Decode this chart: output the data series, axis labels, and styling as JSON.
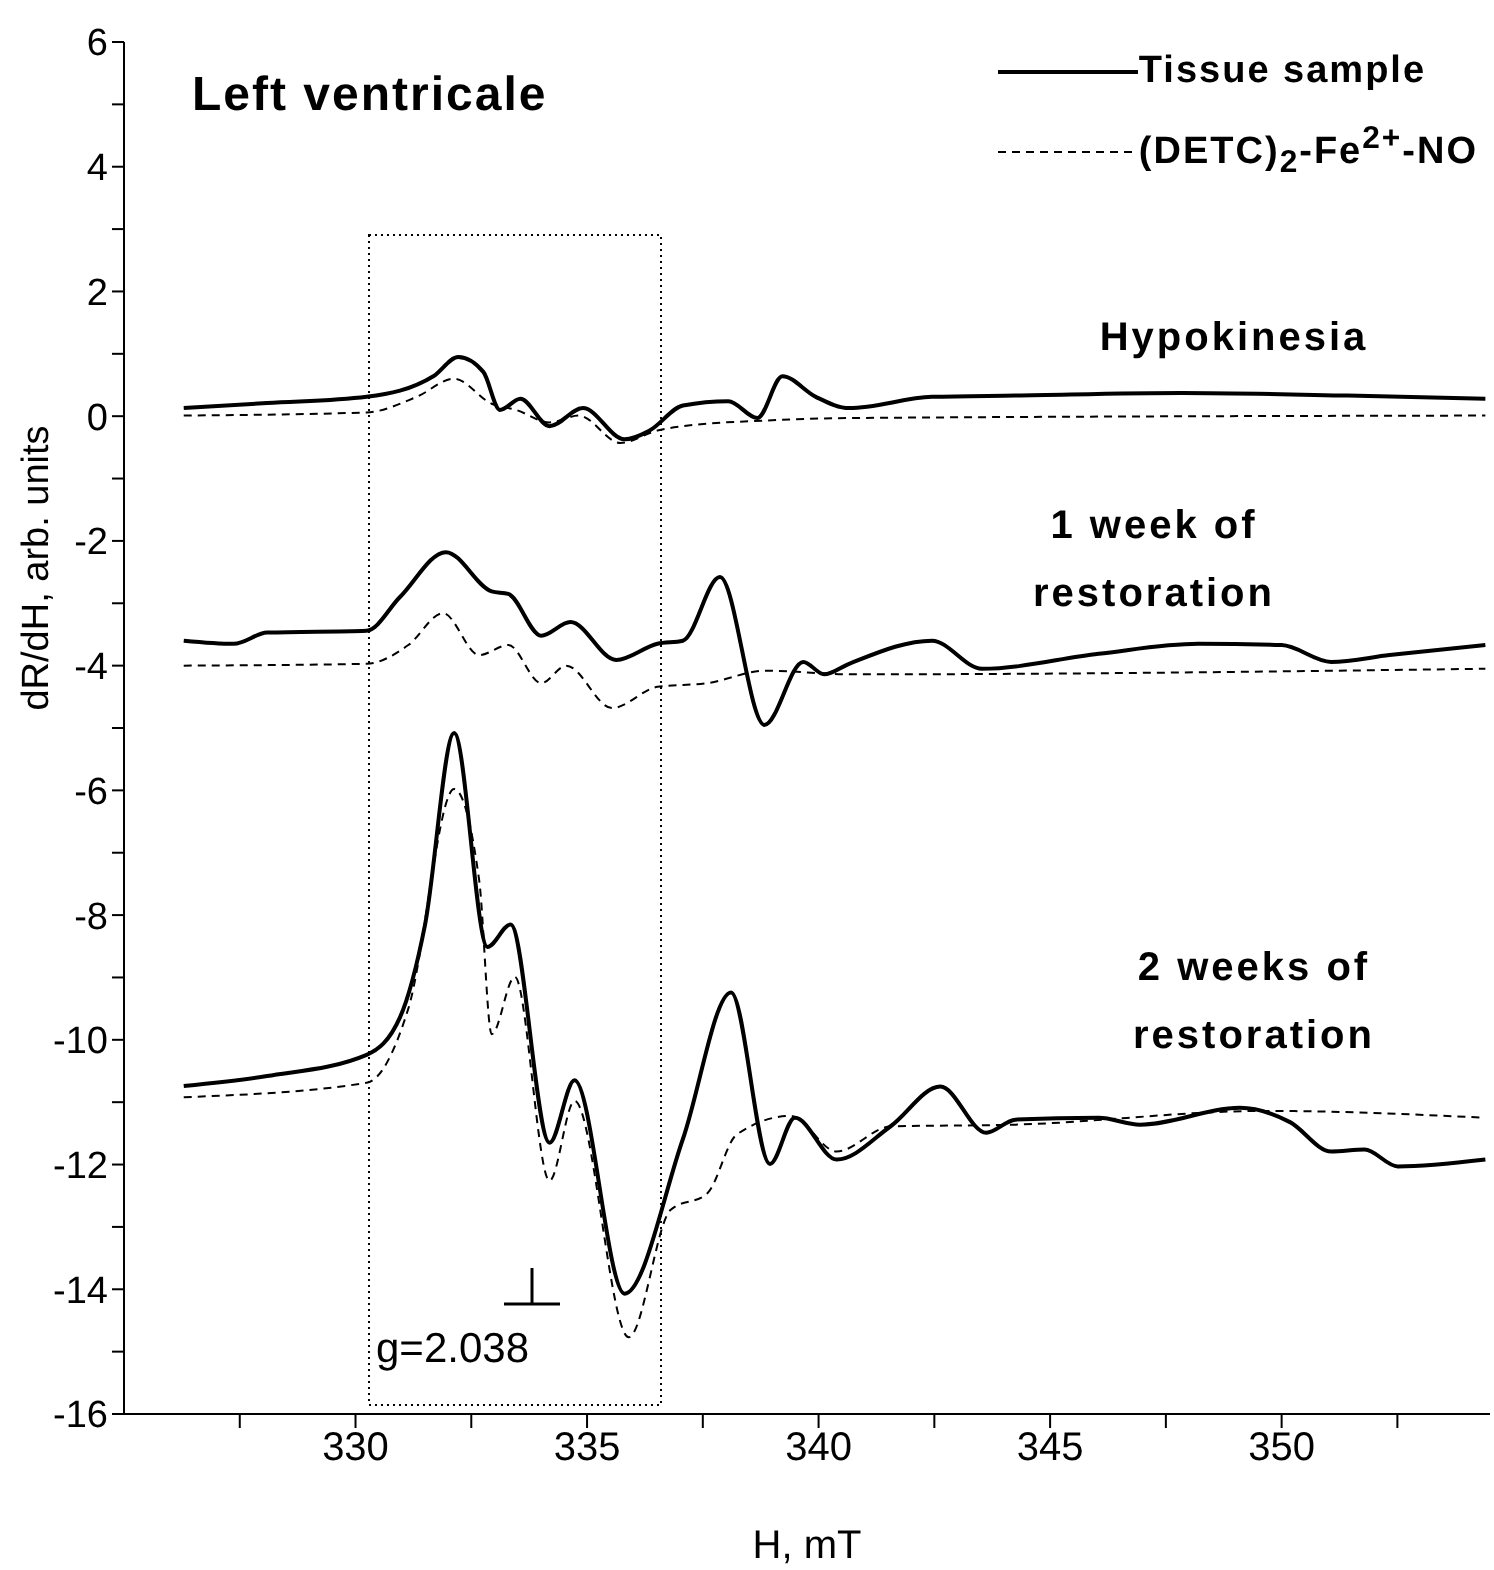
{
  "chart_data": {
    "type": "line",
    "title": "Left ventricale",
    "xlabel": "H, mT",
    "ylabel": "dR/dH, arb. units",
    "xlim": [
      325,
      354.5
    ],
    "xticks": [
      {
        "value": 327.5,
        "label": null
      },
      330,
      {
        "value": 332.5,
        "label": null
      },
      335,
      {
        "value": 337.5,
        "label": null
      },
      340,
      {
        "value": 342.5,
        "label": null
      },
      345,
      {
        "value": 347.5,
        "label": null
      },
      350,
      {
        "value": 352.5,
        "label": null
      }
    ],
    "ylim": [
      -16,
      6
    ],
    "yticks": [
      -16,
      {
        "value": -15,
        "label": null
      },
      -14,
      {
        "value": -13,
        "label": null
      },
      -12,
      {
        "value": -11,
        "label": null
      },
      -10,
      {
        "value": -9,
        "label": null
      },
      -8,
      {
        "value": -7,
        "label": null
      },
      -6,
      {
        "value": -5,
        "label": null
      },
      -4,
      {
        "value": -3,
        "label": null
      },
      -2,
      {
        "value": -1,
        "label": null
      },
      0,
      {
        "value": 1,
        "label": null
      },
      2,
      {
        "value": 3,
        "label": null
      },
      4,
      {
        "value": 5,
        "label": null
      },
      6
    ],
    "legend": "top right",
    "marker": "none",
    "series": [
      {
        "name": "Tissue sample",
        "color": "#000000",
        "line_style": "solid",
        "x": [
          326.29,
          328.09,
          330.24,
          331.68,
          332.22,
          332.76,
          333.12,
          333.56,
          334.19,
          334.91,
          335.81,
          336.35,
          337.07,
          338.05,
          338.68,
          339.22,
          339.94,
          340.66,
          342.45,
          344.25,
          347.84,
          351.43,
          354.4
        ],
        "values": [
          0.13,
          0.21,
          0.31,
          0.64,
          0.95,
          0.71,
          0.1,
          0.28,
          -0.16,
          0.13,
          -0.37,
          -0.23,
          0.17,
          0.24,
          -0.03,
          0.64,
          0.31,
          0.13,
          0.31,
          0.33,
          0.37,
          0.33,
          0.28
        ]
      },
      {
        "name": "(DETC)$_{2}$-Fe$^{2+}$-NO",
        "color": "#000000",
        "line_style": "dashed",
        "x": [
          326.29,
          330.24,
          331.32,
          332.13,
          332.94,
          333.47,
          334.19,
          334.82,
          335.72,
          336.52,
          337.07,
          338.86,
          340.66,
          354.4
        ],
        "values": [
          0.01,
          0.06,
          0.31,
          0.6,
          0.2,
          0.1,
          -0.1,
          0.01,
          -0.43,
          -0.23,
          -0.16,
          -0.07,
          -0.03,
          0.01
        ]
      },
      {
        "color": "#000000",
        "line_style": "solid",
        "x": [
          326.29,
          327.37,
          328.09,
          330.24,
          330.96,
          331.95,
          332.94,
          333.3,
          334.01,
          334.64,
          335.63,
          336.52,
          337.07,
          337.87,
          338.83,
          339.67,
          340.12,
          340.66,
          342.45,
          343.53,
          346.05,
          348.2,
          350.0,
          351.07,
          352.33,
          354.4
        ],
        "values": [
          -3.6,
          -3.65,
          -3.47,
          -3.44,
          -2.9,
          -2.18,
          -2.81,
          -2.85,
          -3.52,
          -3.3,
          -3.91,
          -3.65,
          -3.6,
          -2.58,
          -4.95,
          -3.94,
          -4.14,
          -3.97,
          -3.6,
          -4.05,
          -3.81,
          -3.65,
          -3.67,
          -3.94,
          -3.83,
          -3.67
        ]
      },
      {
        "color": "#000000",
        "line_style": "dashed",
        "x": [
          326.29,
          330.24,
          331.14,
          331.89,
          332.67,
          333.3,
          334.01,
          334.55,
          335.54,
          336.52,
          337.6,
          338.86,
          340.66,
          354.4
        ],
        "values": [
          -4.0,
          -3.97,
          -3.67,
          -3.16,
          -3.83,
          -3.67,
          -4.28,
          -4.0,
          -4.68,
          -4.34,
          -4.28,
          -4.08,
          -4.14,
          -4.05
        ]
      },
      {
        "color": "#000000",
        "line_style": "solid",
        "x": [
          326.29,
          328.09,
          330.24,
          330.96,
          331.5,
          332.13,
          332.85,
          333.35,
          334.19,
          334.73,
          335.81,
          337.07,
          338.11,
          338.95,
          339.49,
          340.39,
          341.55,
          342.63,
          343.62,
          344.25,
          346.05,
          346.94,
          349.1,
          350.18,
          351.07,
          351.79,
          352.51,
          354.4
        ],
        "values": [
          -10.74,
          -10.58,
          -10.24,
          -9.64,
          -8.16,
          -5.08,
          -8.51,
          -8.15,
          -11.65,
          -10.65,
          -14.07,
          -11.59,
          -9.24,
          -11.99,
          -11.25,
          -11.92,
          -11.39,
          -10.75,
          -11.49,
          -11.28,
          -11.25,
          -11.36,
          -11.09,
          -11.32,
          -11.79,
          -11.76,
          -12.03,
          -11.92
        ]
      },
      {
        "color": "#000000",
        "line_style": "dashed",
        "x": [
          326.29,
          330.24,
          331.14,
          332.13,
          332.67,
          332.94,
          333.44,
          334.19,
          334.73,
          335.9,
          336.8,
          337.6,
          338.23,
          339.4,
          340.39,
          341.55,
          344.25,
          349.64,
          354.4
        ],
        "values": [
          -10.92,
          -10.69,
          -9.5,
          -5.98,
          -7.44,
          -9.91,
          -8.99,
          -12.26,
          -10.98,
          -14.77,
          -12.73,
          -12.46,
          -11.52,
          -11.22,
          -11.79,
          -11.39,
          -11.36,
          -11.14,
          -11.25
        ]
      }
    ],
    "annotations": [
      "Hypokinesia",
      "1 week of\nrestoration",
      "2 weeks of\nrestoration",
      "g=2.038"
    ]
  }
}
